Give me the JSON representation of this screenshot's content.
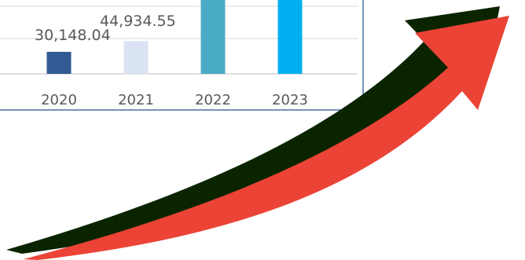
{
  "chart_data": {
    "type": "bar",
    "title": "",
    "xlabel": "",
    "ylabel": "",
    "categories": [
      "2020",
      "2021",
      "2022",
      "2023"
    ],
    "values": [
      30148.04,
      44934.55,
      null,
      null
    ],
    "data_labels": [
      "30,148.04",
      "44,934.55",
      "",
      ""
    ],
    "bar_colors": [
      "#335a92",
      "#dae3f3",
      "#4bacc6",
      "#00b0f0"
    ],
    "ylim": [
      0,
      100000
    ],
    "grid": true,
    "legend": "none",
    "cropped": true
  },
  "overlay": {
    "arrow_icon": "up-trend-arrow-icon",
    "arrow_color": "#eb4335",
    "arrow_shadow_color": "#0b2400"
  },
  "colors": {
    "frame": "#4a6fa5",
    "gridline": "#d9d9d9",
    "axis": "#bfbfbf"
  }
}
